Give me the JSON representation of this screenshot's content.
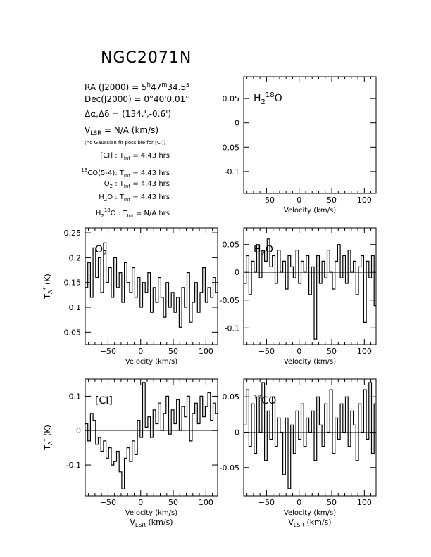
{
  "header": {
    "title": "NGC2071N",
    "ra": "RA (J2000) = 5h47m34.5s",
    "dec": "Dec(J2000) = 0°40'0.01''",
    "offset": "Δα,Δδ = (134.',-0.6')",
    "vlsr": "VLSR = N/A (km/s)",
    "note": "(no Gaussian fit possible for [CI])"
  },
  "integration": [
    {
      "line": "[CI]",
      "tint": "TInt = 4.43 hrs"
    },
    {
      "line": "13CO(5-4)",
      "tint": "TInt = 4.43 hrs"
    },
    {
      "line": "O2",
      "tint": "TInt = 4.43 hrs"
    },
    {
      "line": "H2O",
      "tint": "TInt = 4.43 hrs"
    },
    {
      "line": "H2 18O",
      "tint": "TInt = N/A hrs"
    }
  ],
  "chart_data": [
    {
      "type": "line",
      "panel": "top-right",
      "label": "H2 18O",
      "xlabel": "Velocity (km/s)",
      "ylabel": "",
      "xlim": [
        -85,
        118
      ],
      "ylim": [
        -0.145,
        0.095
      ],
      "xticks": [
        -50,
        0,
        50,
        100
      ],
      "yticks": [
        0.05,
        0,
        -0.05,
        -0.1
      ],
      "ytick_labels": [
        "0.05",
        "0",
        "-0.05",
        "-0.1"
      ],
      "series": []
    },
    {
      "type": "line",
      "panel": "middle-left",
      "label": "O2",
      "xlabel": "Velocity (km/s)",
      "ylabel": "TA* (K)",
      "xlim": [
        -85,
        118
      ],
      "ylim": [
        0.025,
        0.26
      ],
      "xticks": [
        -50,
        0,
        50,
        100
      ],
      "yticks": [
        0.25,
        0.2,
        0.15,
        0.1,
        0.05
      ],
      "ytick_labels": [
        "0.25",
        "0.2",
        "0.15",
        "0.1",
        "0.05"
      ],
      "series": [
        {
          "x_start": -83,
          "x_step": 4,
          "values": [
            0.14,
            0.19,
            0.12,
            0.22,
            0.16,
            0.2,
            0.13,
            0.23,
            0.15,
            0.18,
            0.12,
            0.2,
            0.14,
            0.17,
            0.11,
            0.19,
            0.15,
            0.13,
            0.18,
            0.12,
            0.16,
            0.1,
            0.15,
            0.13,
            0.17,
            0.09,
            0.14,
            0.11,
            0.16,
            0.12,
            0.08,
            0.15,
            0.1,
            0.13,
            0.09,
            0.12,
            0.06,
            0.14,
            0.1,
            0.17,
            0.07,
            0.11,
            0.15,
            0.09,
            0.13,
            0.18,
            0.11,
            0.14,
            0.12,
            0.16,
            0.13
          ]
        }
      ]
    },
    {
      "type": "line",
      "panel": "middle-right",
      "label": "H2O",
      "xlabel": "Velocity (km/s)",
      "ylabel": "",
      "xlim": [
        -85,
        118
      ],
      "ylim": [
        -0.13,
        0.08
      ],
      "xticks": [
        -50,
        0,
        50,
        100
      ],
      "yticks": [
        0.05,
        0,
        -0.05,
        -0.1
      ],
      "ytick_labels": [
        "0.05",
        "0",
        "-0.05",
        "-0.1"
      ],
      "series": [
        {
          "x_start": -83,
          "x_step": 4,
          "values": [
            -0.02,
            0.03,
            -0.04,
            0.02,
            0.0,
            0.05,
            -0.01,
            0.04,
            0.02,
            0.06,
            0.01,
            0.03,
            -0.02,
            0.04,
            0.0,
            0.02,
            -0.03,
            0.03,
            0.01,
            -0.01,
            0.04,
            -0.02,
            0.02,
            0.0,
            0.03,
            -0.04,
            0.01,
            -0.12,
            0.03,
            -0.02,
            0.02,
            -0.01,
            0.04,
            0.0,
            -0.03,
            0.02,
            0.05,
            -0.01,
            0.03,
            -0.02,
            0.04,
            0.0,
            0.02,
            -0.04,
            0.01,
            0.03,
            -0.09,
            0.02,
            -0.01,
            0.03,
            -0.06
          ]
        }
      ]
    },
    {
      "type": "line",
      "panel": "bottom-left",
      "label": "[CI]",
      "xlabel": "Velocity (km/s)",
      "xlabel2": "VLSR (km/s)",
      "ylabel": "TA* (K)",
      "xlim": [
        -85,
        118
      ],
      "ylim": [
        -0.19,
        0.15
      ],
      "xticks": [
        -50,
        0,
        50,
        100
      ],
      "yticks": [
        0.1,
        0,
        -0.1
      ],
      "ytick_labels": [
        "0.1",
        "0",
        "-0.1"
      ],
      "series": [
        {
          "x_start": -83,
          "x_step": 4,
          "values": [
            0.02,
            -0.03,
            0.05,
            0.03,
            -0.04,
            -0.02,
            -0.06,
            -0.03,
            -0.08,
            -0.05,
            -0.1,
            -0.09,
            -0.06,
            -0.12,
            -0.17,
            -0.08,
            -0.05,
            -0.09,
            -0.03,
            -0.07,
            0.03,
            -0.02,
            0.14,
            0.01,
            0.04,
            -0.02,
            0.06,
            0.02,
            0.08,
            0.0,
            0.05,
            0.1,
            -0.01,
            0.06,
            0.02,
            0.09,
            0.0,
            0.07,
            0.04,
            0.1,
            -0.03,
            0.05,
            0.08,
            0.02,
            0.1,
            0.04,
            0.07,
            0.11,
            0.03,
            0.08,
            0.05
          ]
        }
      ]
    },
    {
      "type": "line",
      "panel": "bottom-right",
      "label": "13CO",
      "xlabel": "Velocity (km/s)",
      "xlabel2": "VLSR (km/s)",
      "ylabel": "",
      "xlim": [
        -85,
        118
      ],
      "ylim": [
        -0.09,
        0.075
      ],
      "xticks": [
        -50,
        0,
        50,
        100
      ],
      "yticks": [
        0.05,
        0,
        -0.05
      ],
      "ytick_labels": [
        "0.05",
        "0",
        "-0.05"
      ],
      "series": [
        {
          "x_start": -83,
          "x_step": 4,
          "values": [
            0.01,
            0.06,
            -0.02,
            0.04,
            -0.03,
            0.05,
            0.0,
            0.07,
            -0.04,
            0.03,
            -0.01,
            0.05,
            -0.02,
            0.02,
            0.0,
            -0.06,
            0.02,
            -0.08,
            0.01,
            -0.03,
            0.03,
            -0.01,
            0.04,
            -0.02,
            0.02,
            0.0,
            0.03,
            -0.04,
            0.05,
            0.01,
            -0.02,
            0.04,
            0.0,
            0.06,
            -0.03,
            0.02,
            -0.01,
            0.04,
            0.0,
            0.05,
            -0.02,
            0.03,
            0.01,
            -0.04,
            0.04,
            0.0,
            0.06,
            -0.01,
            0.07,
            -0.03,
            0.04
          ]
        }
      ]
    }
  ]
}
